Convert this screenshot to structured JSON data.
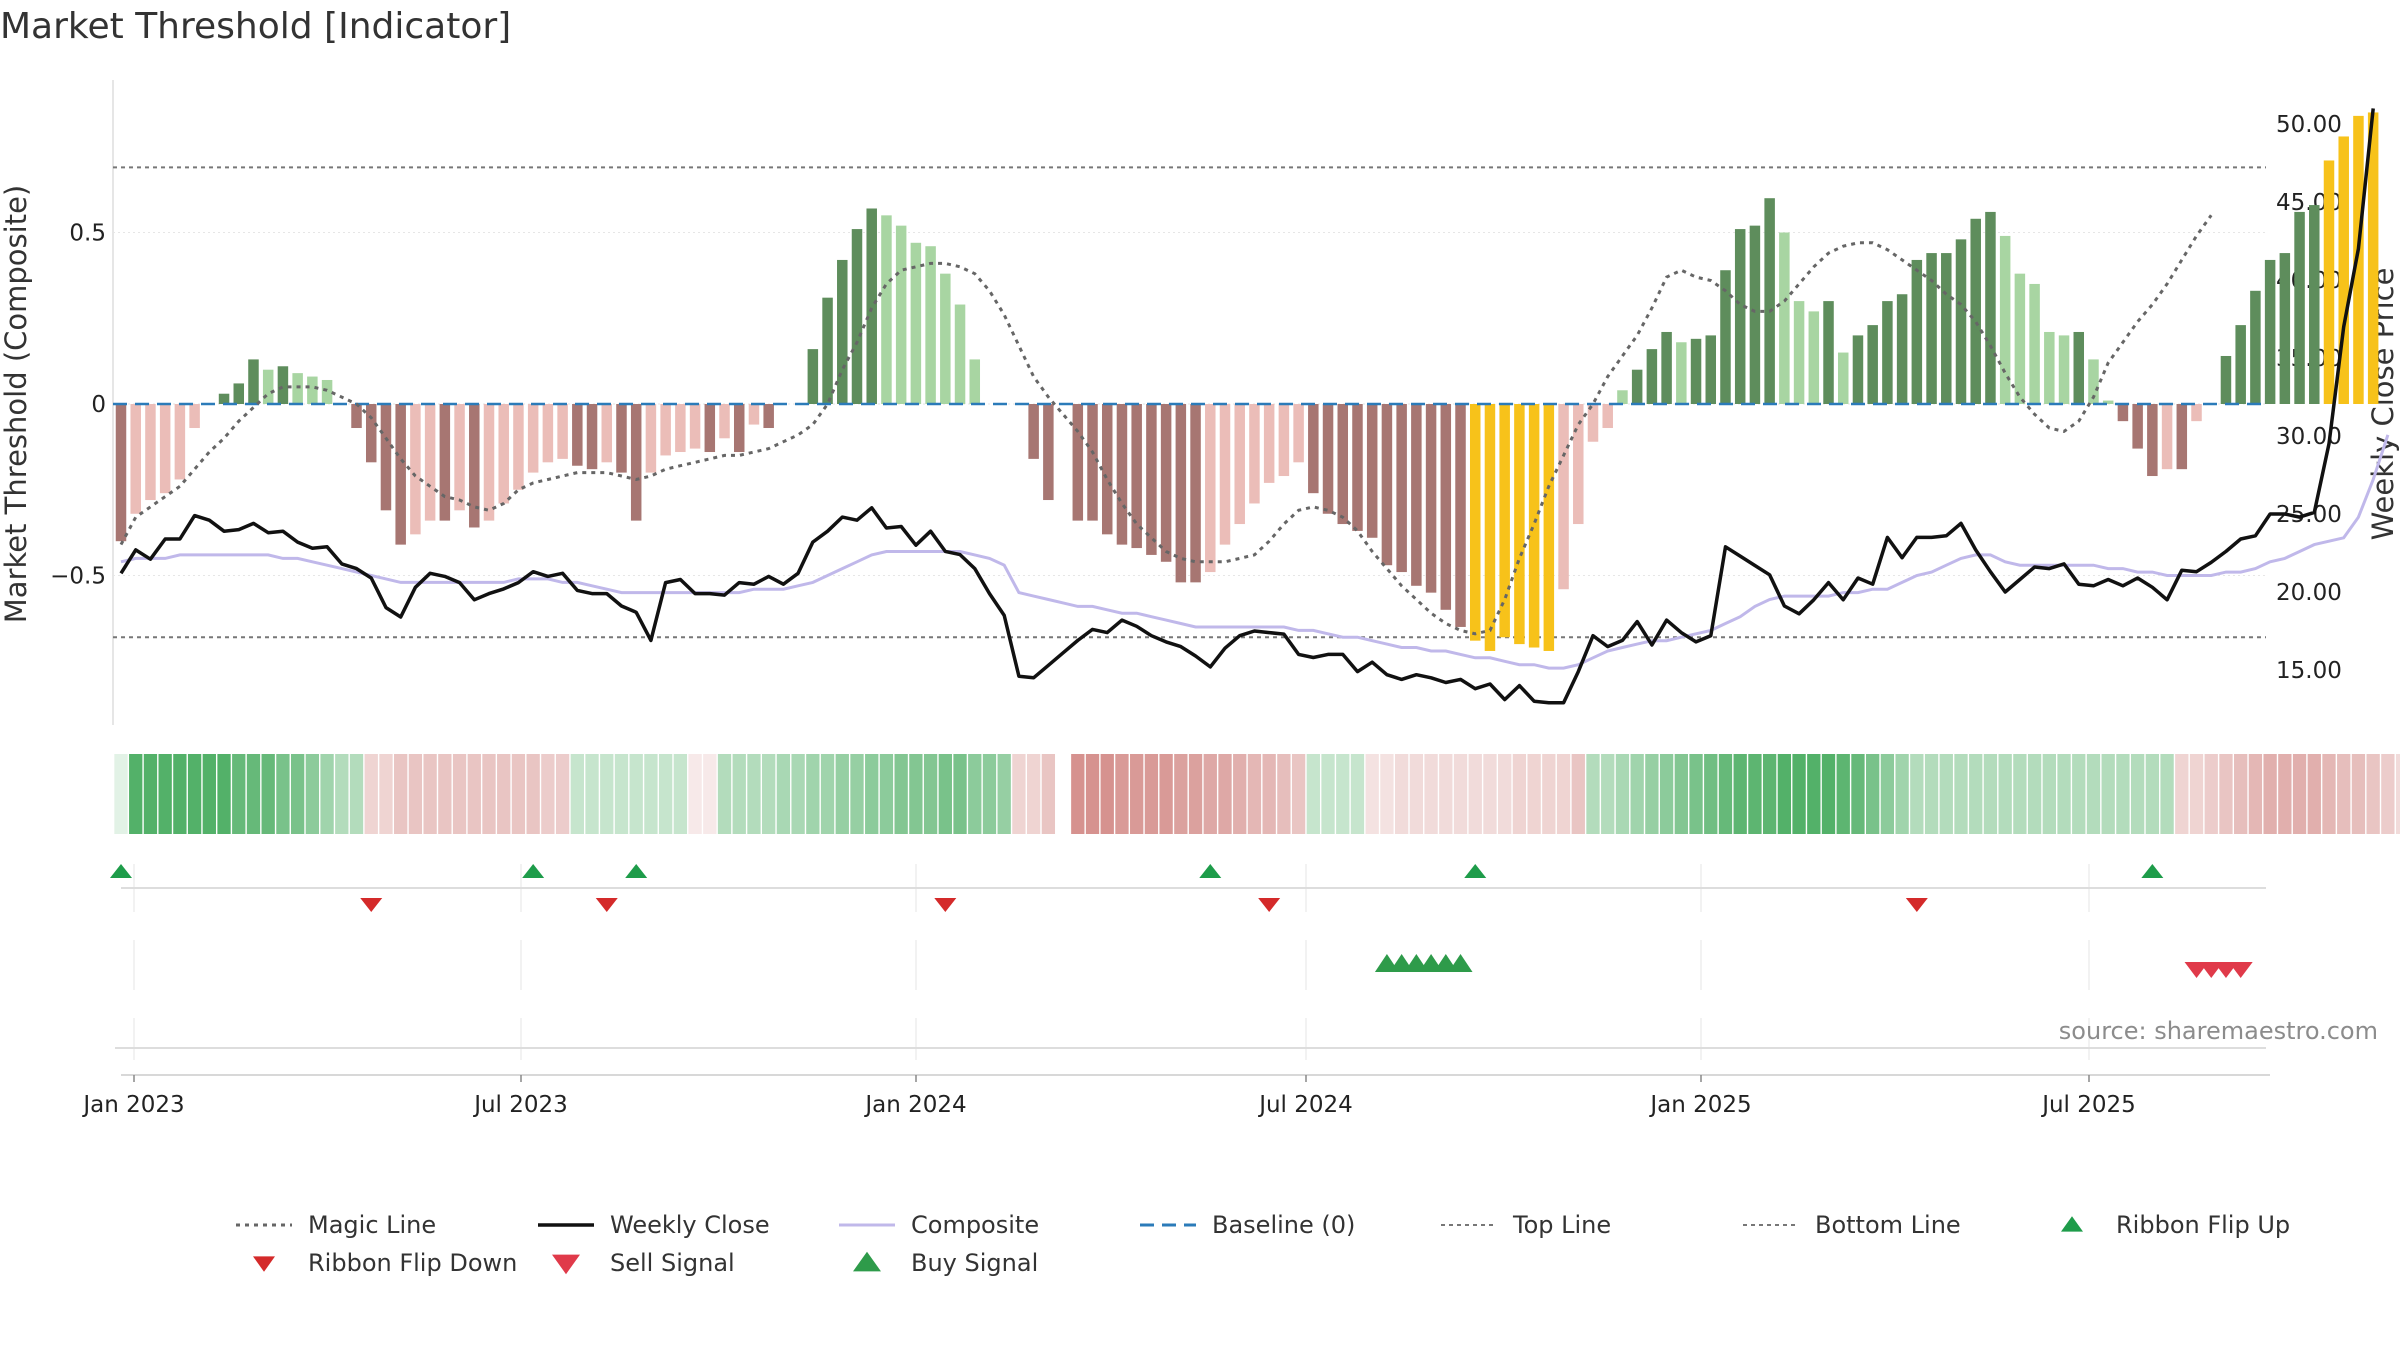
{
  "title": "Market Threshold [Indicator]",
  "source": "source: sharemaestro.com",
  "chart_data": {
    "type": "bar",
    "x_type": "weekly dates",
    "x_range": [
      "2022-12-26",
      "2025-09-29"
    ],
    "x_ticks": [
      "Jan 2023",
      "Jul 2023",
      "Jan 2024",
      "Jul 2024",
      "Jan 2025",
      "Jul 2025"
    ],
    "ylabel_left": "Market Threshold (Composite)",
    "ylabel_right": "Weekly Close Price",
    "ylim_left": [
      -0.9,
      0.95
    ],
    "ylim_right": [
      11.0,
      52.0
    ],
    "left_ticks": [
      {
        "v": 0.5,
        "label": "0.5"
      },
      {
        "v": 0,
        "label": "0"
      },
      {
        "v": -0.5,
        "label": "−0.5"
      }
    ],
    "right_ticks": [
      {
        "v": 50,
        "label": "50.00"
      },
      {
        "v": 45,
        "label": "45.00"
      },
      {
        "v": 40,
        "label": "40.00"
      },
      {
        "v": 35,
        "label": "35.00"
      },
      {
        "v": 30,
        "label": "30.00"
      },
      {
        "v": 25,
        "label": "25.00"
      },
      {
        "v": 20,
        "label": "20.00"
      },
      {
        "v": 15,
        "label": "15.00"
      }
    ],
    "top_line": 0.69,
    "bottom_line": -0.68,
    "magic_line": [
      -0.41,
      -0.33,
      -0.3,
      -0.27,
      -0.24,
      -0.19,
      -0.14,
      -0.1,
      -0.05,
      -0.01,
      0.03,
      0.05,
      0.05,
      0.05,
      0.04,
      0.02,
      0.0,
      -0.04,
      -0.1,
      -0.16,
      -0.21,
      -0.24,
      -0.27,
      -0.28,
      -0.3,
      -0.31,
      -0.29,
      -0.25,
      -0.23,
      -0.22,
      -0.21,
      -0.2,
      -0.2,
      -0.2,
      -0.21,
      -0.22,
      -0.21,
      -0.19,
      -0.18,
      -0.17,
      -0.16,
      -0.15,
      -0.15,
      -0.14,
      -0.13,
      -0.11,
      -0.09,
      -0.06,
      0.0,
      0.1,
      0.18,
      0.28,
      0.35,
      0.39,
      0.4,
      0.41,
      0.41,
      0.4,
      0.38,
      0.33,
      0.26,
      0.17,
      0.08,
      0.02,
      -0.03,
      -0.08,
      -0.14,
      -0.22,
      -0.29,
      -0.35,
      -0.39,
      -0.43,
      -0.45,
      -0.46,
      -0.46,
      -0.46,
      -0.45,
      -0.44,
      -0.4,
      -0.35,
      -0.31,
      -0.3,
      -0.31,
      -0.33,
      -0.37,
      -0.43,
      -0.48,
      -0.53,
      -0.57,
      -0.61,
      -0.64,
      -0.66,
      -0.67,
      -0.66,
      -0.57,
      -0.45,
      -0.35,
      -0.24,
      -0.15,
      -0.06,
      0.0,
      0.08,
      0.14,
      0.2,
      0.28,
      0.37,
      0.39,
      0.37,
      0.36,
      0.33,
      0.29,
      0.27,
      0.27,
      0.3,
      0.35,
      0.4,
      0.44,
      0.46,
      0.47,
      0.47,
      0.45,
      0.42,
      0.39,
      0.36,
      0.32,
      0.29,
      0.24,
      0.17,
      0.09,
      0.02,
      -0.03,
      -0.07,
      -0.08,
      -0.05,
      0.02,
      0.12,
      0.18,
      0.24,
      0.29,
      0.35,
      0.42,
      0.49,
      0.55
    ],
    "histogram": [
      -0.4,
      -0.32,
      -0.28,
      -0.26,
      -0.22,
      -0.07,
      0.0,
      0.03,
      0.06,
      0.13,
      0.1,
      0.11,
      0.09,
      0.08,
      0.07,
      0.0,
      -0.07,
      -0.17,
      -0.31,
      -0.41,
      -0.38,
      -0.34,
      -0.34,
      -0.31,
      -0.36,
      -0.34,
      -0.29,
      -0.25,
      -0.2,
      -0.17,
      -0.16,
      -0.18,
      -0.19,
      -0.17,
      -0.2,
      -0.34,
      -0.2,
      -0.15,
      -0.14,
      -0.13,
      -0.14,
      -0.1,
      -0.14,
      -0.06,
      -0.07,
      0.0,
      0.0,
      0.16,
      0.31,
      0.42,
      0.51,
      0.57,
      0.55,
      0.52,
      0.47,
      0.46,
      0.38,
      0.29,
      0.13,
      0.0,
      0.0,
      0.0,
      -0.16,
      -0.28,
      0.0,
      -0.34,
      -0.34,
      -0.38,
      -0.41,
      -0.42,
      -0.44,
      -0.46,
      -0.52,
      -0.52,
      -0.49,
      -0.41,
      -0.35,
      -0.29,
      -0.23,
      -0.21,
      -0.17,
      -0.26,
      -0.32,
      -0.35,
      -0.37,
      -0.39,
      -0.47,
      -0.49,
      -0.53,
      -0.55,
      -0.6,
      -0.65,
      -0.69,
      -0.72,
      -0.68,
      -0.7,
      -0.71,
      -0.72,
      -0.54,
      -0.35,
      -0.11,
      -0.07,
      0.04,
      0.1,
      0.16,
      0.21,
      0.18,
      0.19,
      0.2,
      0.39,
      0.51,
      0.52,
      0.6,
      0.5,
      0.3,
      0.27,
      0.3,
      0.15,
      0.2,
      0.23,
      0.3,
      0.32,
      0.42,
      0.44,
      0.44,
      0.48,
      0.54,
      0.56,
      0.49,
      0.38,
      0.35,
      0.21,
      0.2,
      0.21,
      0.13,
      0.01,
      -0.05,
      -0.13,
      -0.21,
      -0.19,
      -0.19,
      -0.05,
      0.0,
      0.14,
      0.23,
      0.33,
      0.42,
      0.44,
      0.56,
      0.58,
      0.71,
      0.78,
      0.84,
      0.85
    ],
    "weekly_close": [
      21.2,
      22.7,
      22.1,
      23.4,
      23.4,
      24.9,
      24.6,
      23.9,
      24.0,
      24.4,
      23.8,
      23.9,
      23.2,
      22.8,
      22.9,
      21.8,
      21.5,
      20.9,
      19.0,
      18.4,
      20.3,
      21.2,
      21.0,
      20.6,
      19.5,
      19.9,
      20.2,
      20.6,
      21.3,
      21.0,
      21.2,
      20.1,
      19.9,
      19.9,
      19.1,
      18.7,
      16.9,
      20.6,
      20.8,
      19.9,
      19.9,
      19.8,
      20.6,
      20.5,
      21.0,
      20.5,
      21.2,
      23.2,
      23.9,
      24.8,
      24.6,
      25.4,
      24.1,
      24.2,
      23.0,
      23.9,
      22.6,
      22.4,
      21.5,
      19.9,
      18.5,
      14.6,
      14.5,
      15.3,
      16.1,
      16.9,
      17.6,
      17.4,
      18.2,
      17.8,
      17.2,
      16.8,
      16.5,
      15.9,
      15.2,
      16.4,
      17.2,
      17.5,
      17.4,
      17.3,
      16.0,
      15.8,
      16.0,
      16.0,
      14.9,
      15.5,
      14.7,
      14.4,
      14.7,
      14.5,
      14.2,
      14.4,
      13.8,
      14.1,
      13.1,
      14.0,
      13.0,
      12.9,
      12.9,
      14.9,
      17.2,
      16.5,
      16.9,
      18.1,
      16.6,
      18.2,
      17.4,
      16.8,
      17.2,
      22.9,
      22.3,
      21.7,
      21.1,
      19.1,
      18.6,
      19.5,
      20.6,
      19.5,
      20.9,
      20.5,
      23.5,
      22.2,
      23.5,
      23.5,
      23.6,
      24.4,
      22.7,
      21.3,
      20.0,
      20.8,
      21.6,
      21.5,
      21.8,
      20.5,
      20.4,
      20.8,
      20.4,
      20.9,
      20.3,
      19.5,
      21.4,
      21.3,
      21.9,
      22.6,
      23.4,
      23.6,
      25.0,
      25.0,
      24.8,
      25.1,
      29.5,
      37.0,
      42.0,
      51.0
    ],
    "composite": [
      -0.46,
      -0.45,
      -0.45,
      -0.45,
      -0.44,
      -0.44,
      -0.44,
      -0.44,
      -0.44,
      -0.44,
      -0.44,
      -0.45,
      -0.45,
      -0.46,
      -0.47,
      -0.48,
      -0.49,
      -0.5,
      -0.51,
      -0.52,
      -0.52,
      -0.52,
      -0.52,
      -0.52,
      -0.52,
      -0.52,
      -0.52,
      -0.51,
      -0.51,
      -0.51,
      -0.52,
      -0.52,
      -0.53,
      -0.54,
      -0.55,
      -0.55,
      -0.55,
      -0.55,
      -0.55,
      -0.55,
      -0.55,
      -0.55,
      -0.55,
      -0.54,
      -0.54,
      -0.54,
      -0.53,
      -0.52,
      -0.5,
      -0.48,
      -0.46,
      -0.44,
      -0.43,
      -0.43,
      -0.43,
      -0.43,
      -0.43,
      -0.43,
      -0.44,
      -0.45,
      -0.47,
      -0.55,
      -0.56,
      -0.57,
      -0.58,
      -0.59,
      -0.59,
      -0.6,
      -0.61,
      -0.61,
      -0.62,
      -0.63,
      -0.64,
      -0.65,
      -0.65,
      -0.65,
      -0.65,
      -0.65,
      -0.65,
      -0.65,
      -0.66,
      -0.66,
      -0.67,
      -0.68,
      -0.68,
      -0.69,
      -0.7,
      -0.71,
      -0.71,
      -0.72,
      -0.72,
      -0.73,
      -0.74,
      -0.74,
      -0.75,
      -0.76,
      -0.76,
      -0.77,
      -0.77,
      -0.76,
      -0.74,
      -0.72,
      -0.71,
      -0.7,
      -0.69,
      -0.69,
      -0.68,
      -0.67,
      -0.66,
      -0.64,
      -0.62,
      -0.59,
      -0.57,
      -0.56,
      -0.56,
      -0.56,
      -0.56,
      -0.55,
      -0.55,
      -0.54,
      -0.54,
      -0.52,
      -0.5,
      -0.49,
      -0.47,
      -0.45,
      -0.44,
      -0.44,
      -0.46,
      -0.47,
      -0.47,
      -0.47,
      -0.47,
      -0.47,
      -0.47,
      -0.48,
      -0.48,
      -0.49,
      -0.49,
      -0.5,
      -0.5,
      -0.5,
      -0.5,
      -0.49,
      -0.49,
      -0.48,
      -0.46,
      -0.45,
      -0.43,
      -0.41,
      -0.4,
      -0.39,
      -0.33,
      -0.22,
      -0.09
    ],
    "ribbon": [
      0.15,
      0.9,
      0.9,
      0.9,
      0.9,
      0.9,
      0.9,
      0.9,
      0.8,
      0.8,
      0.8,
      0.7,
      0.7,
      0.6,
      0.5,
      0.4,
      0.4,
      -0.3,
      -0.3,
      -0.4,
      -0.4,
      -0.4,
      -0.4,
      -0.4,
      -0.4,
      -0.4,
      -0.4,
      -0.4,
      -0.4,
      -0.35,
      -0.35,
      0.3,
      0.3,
      0.3,
      0.3,
      0.3,
      0.3,
      0.3,
      0.3,
      -0.15,
      -0.15,
      0.4,
      0.4,
      0.4,
      0.4,
      0.45,
      0.45,
      0.5,
      0.5,
      0.55,
      0.55,
      0.6,
      0.6,
      0.65,
      0.65,
      0.65,
      0.7,
      0.7,
      0.6,
      0.6,
      0.55,
      -0.3,
      -0.3,
      -0.4,
      null,
      -0.75,
      -0.75,
      -0.75,
      -0.7,
      -0.7,
      -0.7,
      -0.7,
      -0.65,
      -0.65,
      -0.6,
      -0.6,
      -0.55,
      -0.5,
      -0.5,
      -0.45,
      -0.4,
      0.3,
      0.3,
      0.3,
      0.3,
      -0.2,
      -0.2,
      -0.25,
      -0.25,
      -0.25,
      -0.25,
      -0.25,
      -0.25,
      -0.25,
      -0.25,
      -0.3,
      -0.3,
      -0.3,
      -0.3,
      -0.4,
      0.4,
      0.4,
      0.45,
      0.5,
      0.55,
      0.6,
      0.65,
      0.7,
      0.75,
      0.8,
      0.85,
      0.85,
      0.85,
      0.9,
      0.9,
      0.9,
      0.9,
      0.85,
      0.8,
      0.7,
      0.6,
      0.5,
      0.4,
      0.4,
      0.4,
      0.4,
      0.4,
      0.4,
      0.4,
      0.4,
      0.4,
      0.4,
      0.4,
      0.4,
      0.4,
      0.4,
      0.4,
      0.4,
      0.4,
      0.4,
      -0.3,
      -0.3,
      -0.35,
      -0.4,
      -0.45,
      -0.5,
      -0.55,
      -0.55,
      -0.55,
      -0.55,
      -0.5,
      -0.45,
      -0.45,
      -0.4,
      -0.35,
      -0.25,
      0.55,
      0.6,
      0.6,
      0.65,
      0.65,
      0.7,
      0.7,
      0.75,
      0.8,
      0.85
    ],
    "ribbon_flip_up_weeks": [
      0,
      28,
      35,
      74,
      92,
      138
    ],
    "ribbon_flip_down_weeks": [
      17,
      33,
      56,
      78,
      122
    ],
    "buy_signal_weeks": [
      86,
      87,
      88,
      89,
      90,
      91
    ],
    "sell_signal_weeks": [
      141,
      142,
      143,
      144
    ],
    "colors": {
      "bar_pos_strong": "#5e8d5c",
      "bar_pos_weak": "#a8d5a2",
      "bar_neg_strong": "#a77672",
      "bar_neg_weak": "#ebbdb8",
      "bar_extreme": "#f7c21a",
      "weekly_close": "#111111",
      "composite": "#c0b8ea",
      "magic_line": "#666666",
      "baseline": "#2b7bb9",
      "threshold_lines": "#777777",
      "ribbon_flip_up": "#1e9c4a",
      "ribbon_flip_down": "#d42a2a",
      "buy_signal": "#2e9b4a",
      "sell_signal": "#e03a4a"
    }
  },
  "legend": [
    {
      "label": "Magic Line",
      "icon": "dotted-line-icon"
    },
    {
      "label": "Weekly Close",
      "icon": "solid-line-icon"
    },
    {
      "label": "Composite",
      "icon": "solid-line-icon"
    },
    {
      "label": "Baseline (0)",
      "icon": "dashed-line-icon"
    },
    {
      "label": "Top Line",
      "icon": "dotted-line-icon"
    },
    {
      "label": "Bottom Line",
      "icon": "dotted-line-icon"
    },
    {
      "label": "Ribbon Flip Up",
      "icon": "triangle-up-icon"
    },
    {
      "label": "Ribbon Flip Down",
      "icon": "triangle-down-icon"
    },
    {
      "label": "Sell Signal",
      "icon": "triangle-down-icon"
    },
    {
      "label": "Buy Signal",
      "icon": "triangle-up-icon"
    }
  ]
}
